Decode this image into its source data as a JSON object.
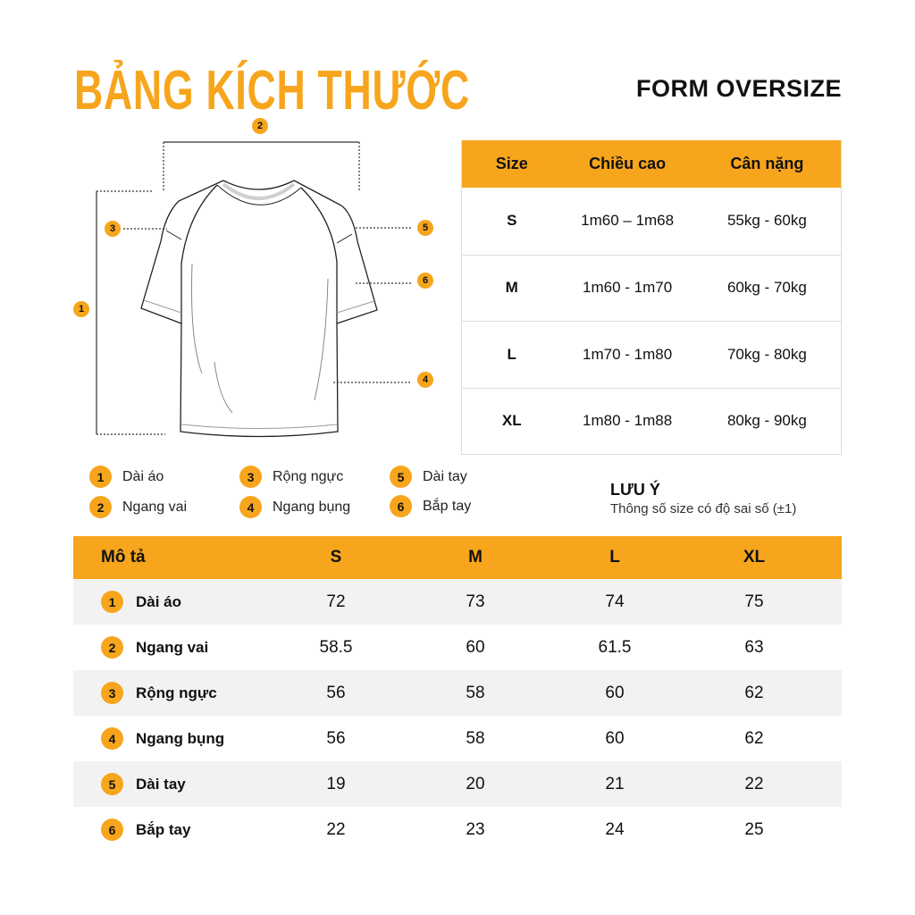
{
  "title": "BẢNG KÍCH THƯỚC",
  "form": "FORM OVERSIZE",
  "accent": "#F7A51C",
  "size_table": {
    "headers": [
      "Size",
      "Chiều cao",
      "Cân nặng"
    ],
    "rows": [
      [
        "S",
        "1m60 – 1m68",
        "55kg - 60kg"
      ],
      [
        "M",
        "1m60 - 1m70",
        "60kg - 70kg"
      ],
      [
        "L",
        "1m70 - 1m80",
        "70kg - 80kg"
      ],
      [
        "XL",
        "1m80 - 1m88",
        "80kg - 90kg"
      ]
    ]
  },
  "legend": [
    {
      "n": "1",
      "label": "Dài áo"
    },
    {
      "n": "2",
      "label": "Ngang vai"
    },
    {
      "n": "3",
      "label": "Rộng ngực"
    },
    {
      "n": "4",
      "label": "Ngang bụng"
    },
    {
      "n": "5",
      "label": "Dài tay"
    },
    {
      "n": "6",
      "label": "Bắp tay"
    }
  ],
  "note": {
    "title": "LƯU Ý",
    "text": "Thông số size có độ sai số (±1)"
  },
  "measure_table": {
    "headers": [
      "Mô tả",
      "S",
      "M",
      "L",
      "XL"
    ],
    "rows": [
      {
        "n": "1",
        "label": "Dài áo",
        "values": [
          "72",
          "73",
          "74",
          "75"
        ]
      },
      {
        "n": "2",
        "label": "Ngang vai",
        "values": [
          "58.5",
          "60",
          "61.5",
          "63"
        ]
      },
      {
        "n": "3",
        "label": "Rộng ngực",
        "values": [
          "56",
          "58",
          "60",
          "62"
        ]
      },
      {
        "n": "4",
        "label": "Ngang bụng",
        "values": [
          "56",
          "58",
          "60",
          "62"
        ]
      },
      {
        "n": "5",
        "label": "Dài tay",
        "values": [
          "19",
          "20",
          "21",
          "22"
        ]
      },
      {
        "n": "6",
        "label": "Bắp tay",
        "values": [
          "22",
          "23",
          "24",
          "25"
        ]
      }
    ]
  }
}
